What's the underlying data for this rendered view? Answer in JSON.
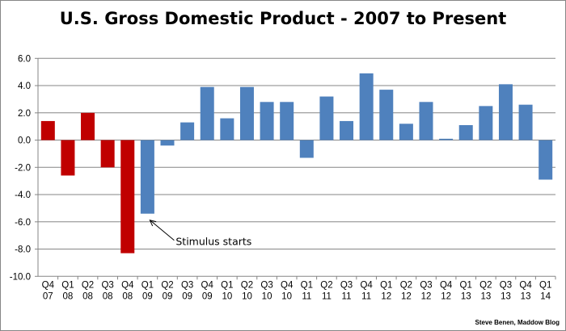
{
  "chart_data": {
    "type": "bar",
    "title": "U.S. Gross Domestic Product - 2007 to Present",
    "xlabel": "",
    "ylabel": "",
    "ylim": [
      -10,
      6
    ],
    "yticks": [
      "6.0",
      "4.0",
      "2.0",
      "0.0",
      "-2.0",
      "-4.0",
      "-6.0",
      "-8.0",
      "-10.0"
    ],
    "ytick_values": [
      6,
      4,
      2,
      0,
      -2,
      -4,
      -6,
      -8,
      -10
    ],
    "grid": true,
    "legend": "none",
    "categories": [
      [
        "Q4",
        "07"
      ],
      [
        "Q1",
        "08"
      ],
      [
        "Q2",
        "08"
      ],
      [
        "Q3",
        "08"
      ],
      [
        "Q4",
        "08"
      ],
      [
        "Q1",
        "09"
      ],
      [
        "Q2",
        "09"
      ],
      [
        "Q3",
        "09"
      ],
      [
        "Q4",
        "09"
      ],
      [
        "Q1",
        "10"
      ],
      [
        "Q2",
        "10"
      ],
      [
        "Q3",
        "10"
      ],
      [
        "Q4",
        "10"
      ],
      [
        "Q1",
        "11"
      ],
      [
        "Q2",
        "11"
      ],
      [
        "Q3",
        "11"
      ],
      [
        "Q4",
        "11"
      ],
      [
        "Q1",
        "12"
      ],
      [
        "Q2",
        "12"
      ],
      [
        "Q3",
        "12"
      ],
      [
        "Q4",
        "12"
      ],
      [
        "Q1",
        "13"
      ],
      [
        "Q2",
        "13"
      ],
      [
        "Q3",
        "13"
      ],
      [
        "Q4",
        "13"
      ],
      [
        "Q1",
        "14"
      ]
    ],
    "values": [
      1.4,
      -2.6,
      2.0,
      -2.0,
      -8.3,
      -5.4,
      -0.4,
      1.3,
      3.9,
      1.6,
      3.9,
      2.8,
      2.8,
      -1.3,
      3.2,
      1.4,
      4.9,
      3.7,
      1.2,
      2.8,
      0.1,
      1.1,
      2.5,
      4.1,
      2.6,
      -2.9
    ],
    "bar_colors": [
      "#C00000",
      "#C00000",
      "#C00000",
      "#C00000",
      "#C00000",
      "#4F81BD",
      "#4F81BD",
      "#4F81BD",
      "#4F81BD",
      "#4F81BD",
      "#4F81BD",
      "#4F81BD",
      "#4F81BD",
      "#4F81BD",
      "#4F81BD",
      "#4F81BD",
      "#4F81BD",
      "#4F81BD",
      "#4F81BD",
      "#4F81BD",
      "#4F81BD",
      "#4F81BD",
      "#4F81BD",
      "#4F81BD",
      "#4F81BD",
      "#4F81BD"
    ],
    "annotation": {
      "text": "Stimulus starts",
      "target_index": 5
    },
    "credit": "Steve Benen, Maddow Blog"
  }
}
